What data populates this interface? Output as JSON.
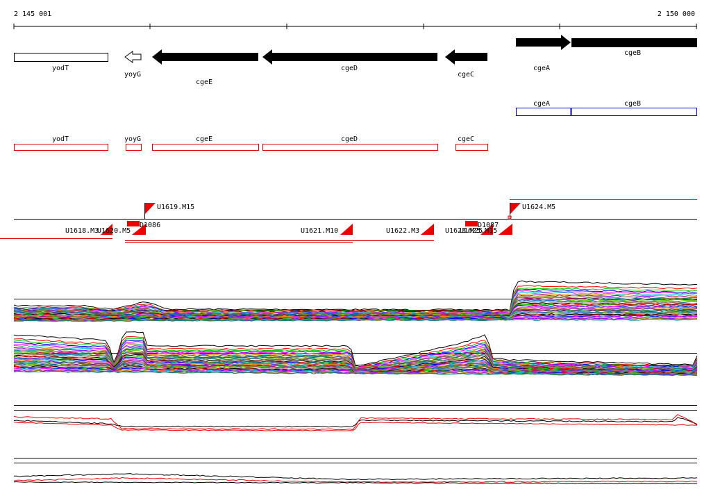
{
  "ruler": {
    "start": "2 145 001",
    "end": "2 150 000"
  },
  "genes": [
    "yodT",
    "yoyG",
    "cgeE",
    "cgeD",
    "cgeC",
    "cgeA",
    "cgeB"
  ],
  "operon": [
    "cgeA",
    "cgeB"
  ],
  "cds": [
    "yodT",
    "yoyG",
    "cgeE",
    "cgeD",
    "cgeC"
  ],
  "transcripts": [
    "U1619.M15",
    "U1624.M5",
    "U1618.M3",
    "U1620.M5",
    "D1086",
    "U1621.M10",
    "U1622.M3",
    "U1623.M25",
    "U1625.M15",
    "D1087"
  ]
}
